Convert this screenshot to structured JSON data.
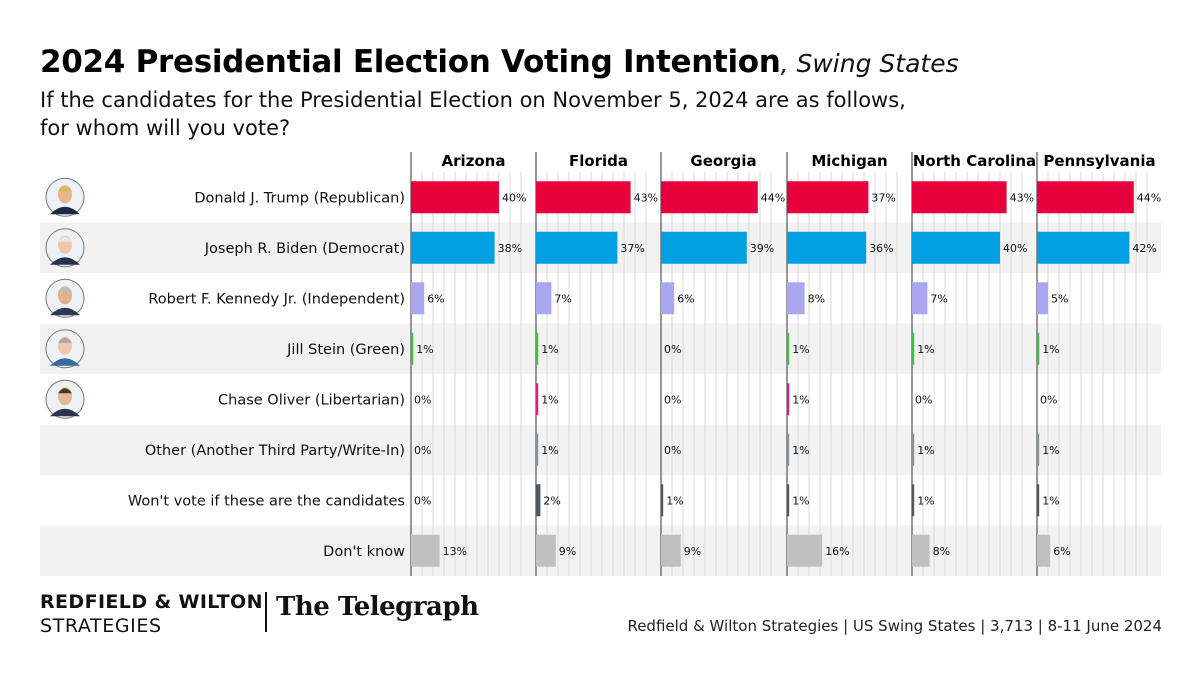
{
  "header": {
    "title": "2024 Presidential Election Voting Intention",
    "subtitle": ", Swing States",
    "question": "If the candidates for the Presidential Election on November 5, 2024 are as follows, for whom will you vote?"
  },
  "footer": {
    "brand_line1": "REDFIELD & WILTON",
    "brand_line2": "STRATEGIES",
    "partner": "The Telegraph",
    "source": "Redfield & Wilton Strategies | US Swing States | 3,713 | 8-11 June 2024"
  },
  "colors": {
    "trump": "#e8003d",
    "biden": "#00a0e3",
    "kennedy": "#a8a7f0",
    "stein": "#3fbf3f",
    "oliver": "#e8197a",
    "other": "#8a9299",
    "wont_vote": "#4e5966",
    "dont_know": "#c0c0c0",
    "row_shade": "#f2f2f2",
    "grid": "#d8d8d8",
    "axis": "#333333"
  },
  "chart_data": {
    "type": "bar",
    "orientation": "horizontal",
    "facets": [
      "Arizona",
      "Florida",
      "Georgia",
      "Michigan",
      "North Carolina",
      "Pennsylvania"
    ],
    "categories": [
      "Donald J. Trump (Republican)",
      "Joseph R. Biden (Democrat)",
      "Robert F. Kennedy Jr. (Independent)",
      "Jill Stein (Green)",
      "Chase Oliver (Libertarian)",
      "Other (Another Third Party/Write-In)",
      "Won't vote if these are the candidates",
      "Don't know"
    ],
    "series": [
      {
        "name": "Arizona",
        "values": [
          40,
          38,
          6,
          1,
          0,
          0,
          0,
          13
        ]
      },
      {
        "name": "Florida",
        "values": [
          43,
          37,
          7,
          1,
          1,
          1,
          2,
          9
        ]
      },
      {
        "name": "Georgia",
        "values": [
          44,
          39,
          6,
          0,
          0,
          0,
          1,
          9
        ]
      },
      {
        "name": "Michigan",
        "values": [
          37,
          36,
          8,
          1,
          1,
          1,
          1,
          16
        ]
      },
      {
        "name": "North Carolina",
        "values": [
          43,
          40,
          7,
          1,
          0,
          1,
          1,
          8
        ]
      },
      {
        "name": "Pennsylvania",
        "values": [
          44,
          42,
          5,
          1,
          0,
          1,
          1,
          6
        ]
      }
    ],
    "portraits": [
      "trump-photo",
      "biden-photo",
      "kennedy-photo",
      "stein-photo",
      "oliver-photo"
    ],
    "value_suffix": "%",
    "xlim": [
      0,
      50
    ],
    "grid": true,
    "title": "2024 Presidential Election Voting Intention, Swing States"
  }
}
